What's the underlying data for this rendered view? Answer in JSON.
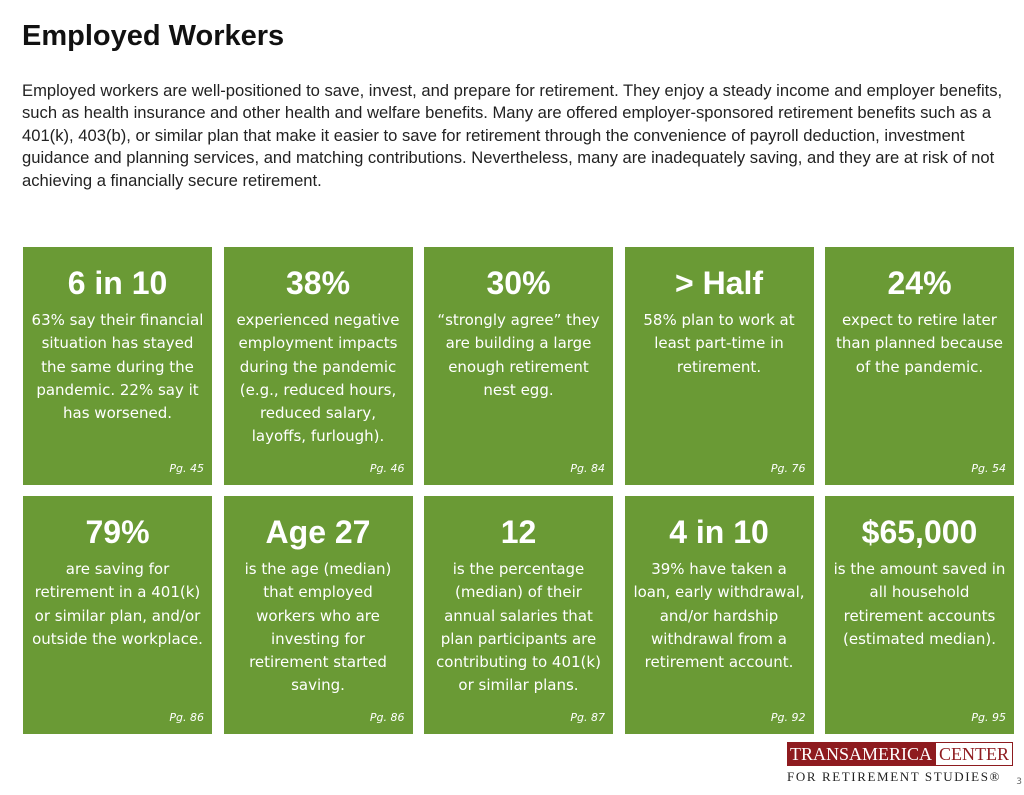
{
  "header": {
    "title": "Employed Workers"
  },
  "intro": "Employed workers are well-positioned to save, invest, and prepare for retirement. They enjoy a steady income and employer benefits, such as health insurance and other health and welfare benefits. Many are offered employer-sponsored retirement benefits such as a 401(k), 403(b), or similar plan that make it easier to save for retirement through the convenience of payroll deduction, investment guidance and planning services, and matching contributions. Nevertheless, many are inadequately saving, and they are at risk of not achieving a financially secure retirement.",
  "cards": [
    {
      "headline": "6 in 10",
      "text": "63% say their financial situation has stayed the same during the pandemic. 22% say it has worsened.",
      "page": "Pg. 45"
    },
    {
      "headline": "38%",
      "text": "experienced negative employment impacts during the pandemic (e.g., reduced hours, reduced salary, layoffs, furlough).",
      "page": "Pg. 46"
    },
    {
      "headline": "30%",
      "text": "“strongly agree” they are building a large enough retirement nest egg.",
      "page": "Pg. 84"
    },
    {
      "headline": "> Half",
      "text": "58% plan to work at least part-time in retirement.",
      "page": "Pg. 76"
    },
    {
      "headline": "24%",
      "text": "expect to retire later than planned because of the pandemic.",
      "page": "Pg. 54"
    },
    {
      "headline": "79%",
      "text": "are saving for retirement in a 401(k) or similar plan, and/or outside the workplace.",
      "page": "Pg. 86"
    },
    {
      "headline": "Age 27",
      "text": "is the age (median) that employed workers who are investing for retirement started saving.",
      "page": "Pg. 86"
    },
    {
      "headline": "12",
      "text": "is the percentage (median) of their annual salaries that plan participants are contributing to 401(k) or similar plans.",
      "page": "Pg. 87"
    },
    {
      "headline": "4 in 10",
      "text": "39% have taken a loan, early withdrawal, and/or hardship withdrawal from a retirement account.",
      "page": "Pg. 92"
    },
    {
      "headline": "$65,000",
      "text": "is the amount saved in all household retirement accounts (estimated median).",
      "page": "Pg. 95"
    }
  ],
  "logo": {
    "name": "TRANSAMERICA",
    "center": "CENTER",
    "subtitle": "FOR RETIREMENT STUDIES®"
  },
  "page_number": "3"
}
